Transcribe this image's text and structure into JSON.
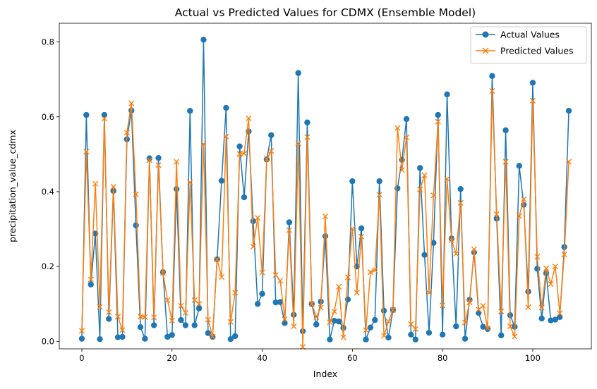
{
  "chart_data": {
    "type": "line",
    "title": "Actual vs Predicted Values for CDMX (Ensemble Model)",
    "xlabel": "Index",
    "ylabel": "precipitation_value_cdmx",
    "xlim": [
      -5,
      113
    ],
    "ylim": [
      -0.02,
      0.85
    ],
    "x_ticks": [
      0,
      20,
      40,
      60,
      80,
      100
    ],
    "y_ticks": [
      0.0,
      0.2,
      0.4,
      0.6,
      0.8
    ],
    "grid": false,
    "legend_position": "top-right",
    "x": [
      0,
      1,
      2,
      3,
      4,
      5,
      6,
      7,
      8,
      9,
      10,
      11,
      12,
      13,
      14,
      15,
      16,
      17,
      18,
      19,
      20,
      21,
      22,
      23,
      24,
      25,
      26,
      27,
      28,
      29,
      30,
      31,
      32,
      33,
      34,
      35,
      36,
      37,
      38,
      39,
      40,
      41,
      42,
      43,
      44,
      45,
      46,
      47,
      48,
      49,
      50,
      51,
      52,
      53,
      54,
      55,
      56,
      57,
      58,
      59,
      60,
      61,
      62,
      63,
      64,
      65,
      66,
      67,
      68,
      69,
      70,
      71,
      72,
      73,
      74,
      75,
      76,
      77,
      78,
      79,
      80,
      81,
      82,
      83,
      84,
      85,
      86,
      87,
      88,
      89,
      90,
      91,
      92,
      93,
      94,
      95,
      96,
      97,
      98,
      99,
      100,
      101,
      102,
      103,
      104,
      105,
      106,
      107,
      108
    ],
    "series": [
      {
        "name": "Actual Values",
        "color": "#1f77b4",
        "marker": "circle",
        "values": [
          0.007,
          0.605,
          0.152,
          0.288,
          0.006,
          0.605,
          0.06,
          0.402,
          0.011,
          0.012,
          0.54,
          0.617,
          0.31,
          0.038,
          0.007,
          0.489,
          0.043,
          0.49,
          0.185,
          0.012,
          0.017,
          0.407,
          0.057,
          0.043,
          0.616,
          0.043,
          0.088,
          0.806,
          0.022,
          0.012,
          0.219,
          0.429,
          0.624,
          0.006,
          0.014,
          0.521,
          0.385,
          0.561,
          0.321,
          0.1,
          0.127,
          0.486,
          0.551,
          0.104,
          0.105,
          0.049,
          0.318,
          0.071,
          0.717,
          0.027,
          0.585,
          0.1,
          0.045,
          0.106,
          0.281,
          0.005,
          0.055,
          0.053,
          0.036,
          0.112,
          0.428,
          0.2,
          0.302,
          0.005,
          0.037,
          0.057,
          0.428,
          0.082,
          0.01,
          0.084,
          0.409,
          0.485,
          0.594,
          0.018,
          0.005,
          0.463,
          0.231,
          0.023,
          0.263,
          0.605,
          0.018,
          0.66,
          0.275,
          0.04,
          0.407,
          0.007,
          0.111,
          0.238,
          0.076,
          0.039,
          0.033,
          0.709,
          0.328,
          0.016,
          0.564,
          0.07,
          0.039,
          0.469,
          0.365,
          0.133,
          0.691,
          0.194,
          0.061,
          0.182,
          0.056,
          0.058,
          0.065,
          0.252,
          0.616
        ]
      },
      {
        "name": "Predicted Values",
        "color": "#ff7f0e",
        "marker": "x",
        "values": [
          0.028,
          0.507,
          0.165,
          0.421,
          0.092,
          0.595,
          0.078,
          0.413,
          0.066,
          0.03,
          0.558,
          0.636,
          0.393,
          0.066,
          0.065,
          0.484,
          0.064,
          0.471,
          0.183,
          0.11,
          0.055,
          0.48,
          0.095,
          0.076,
          0.425,
          0.11,
          0.1,
          0.527,
          0.058,
          0.013,
          0.219,
          0.172,
          0.547,
          0.052,
          0.13,
          0.501,
          0.502,
          0.596,
          0.253,
          0.33,
          0.184,
          0.487,
          0.509,
          0.177,
          0.162,
          0.059,
          0.297,
          0.04,
          0.529,
          -0.015,
          0.546,
          0.1,
          0.065,
          0.09,
          0.334,
          0.051,
          0.08,
          0.146,
          0.011,
          0.171,
          0.301,
          0.13,
          0.28,
          0.03,
          0.185,
          0.19,
          0.392,
          0.015,
          0.053,
          0.084,
          0.57,
          0.458,
          0.545,
          0.046,
          0.033,
          0.406,
          0.444,
          0.13,
          0.39,
          0.587,
          0.096,
          0.434,
          0.27,
          0.234,
          0.37,
          0.05,
          0.104,
          0.246,
          0.085,
          0.095,
          0.035,
          0.669,
          0.34,
          0.08,
          0.48,
          0.04,
          0.013,
          0.335,
          0.38,
          0.091,
          0.643,
          0.226,
          0.09,
          0.195,
          0.153,
          0.2,
          0.075,
          0.232,
          0.48
        ]
      }
    ]
  }
}
